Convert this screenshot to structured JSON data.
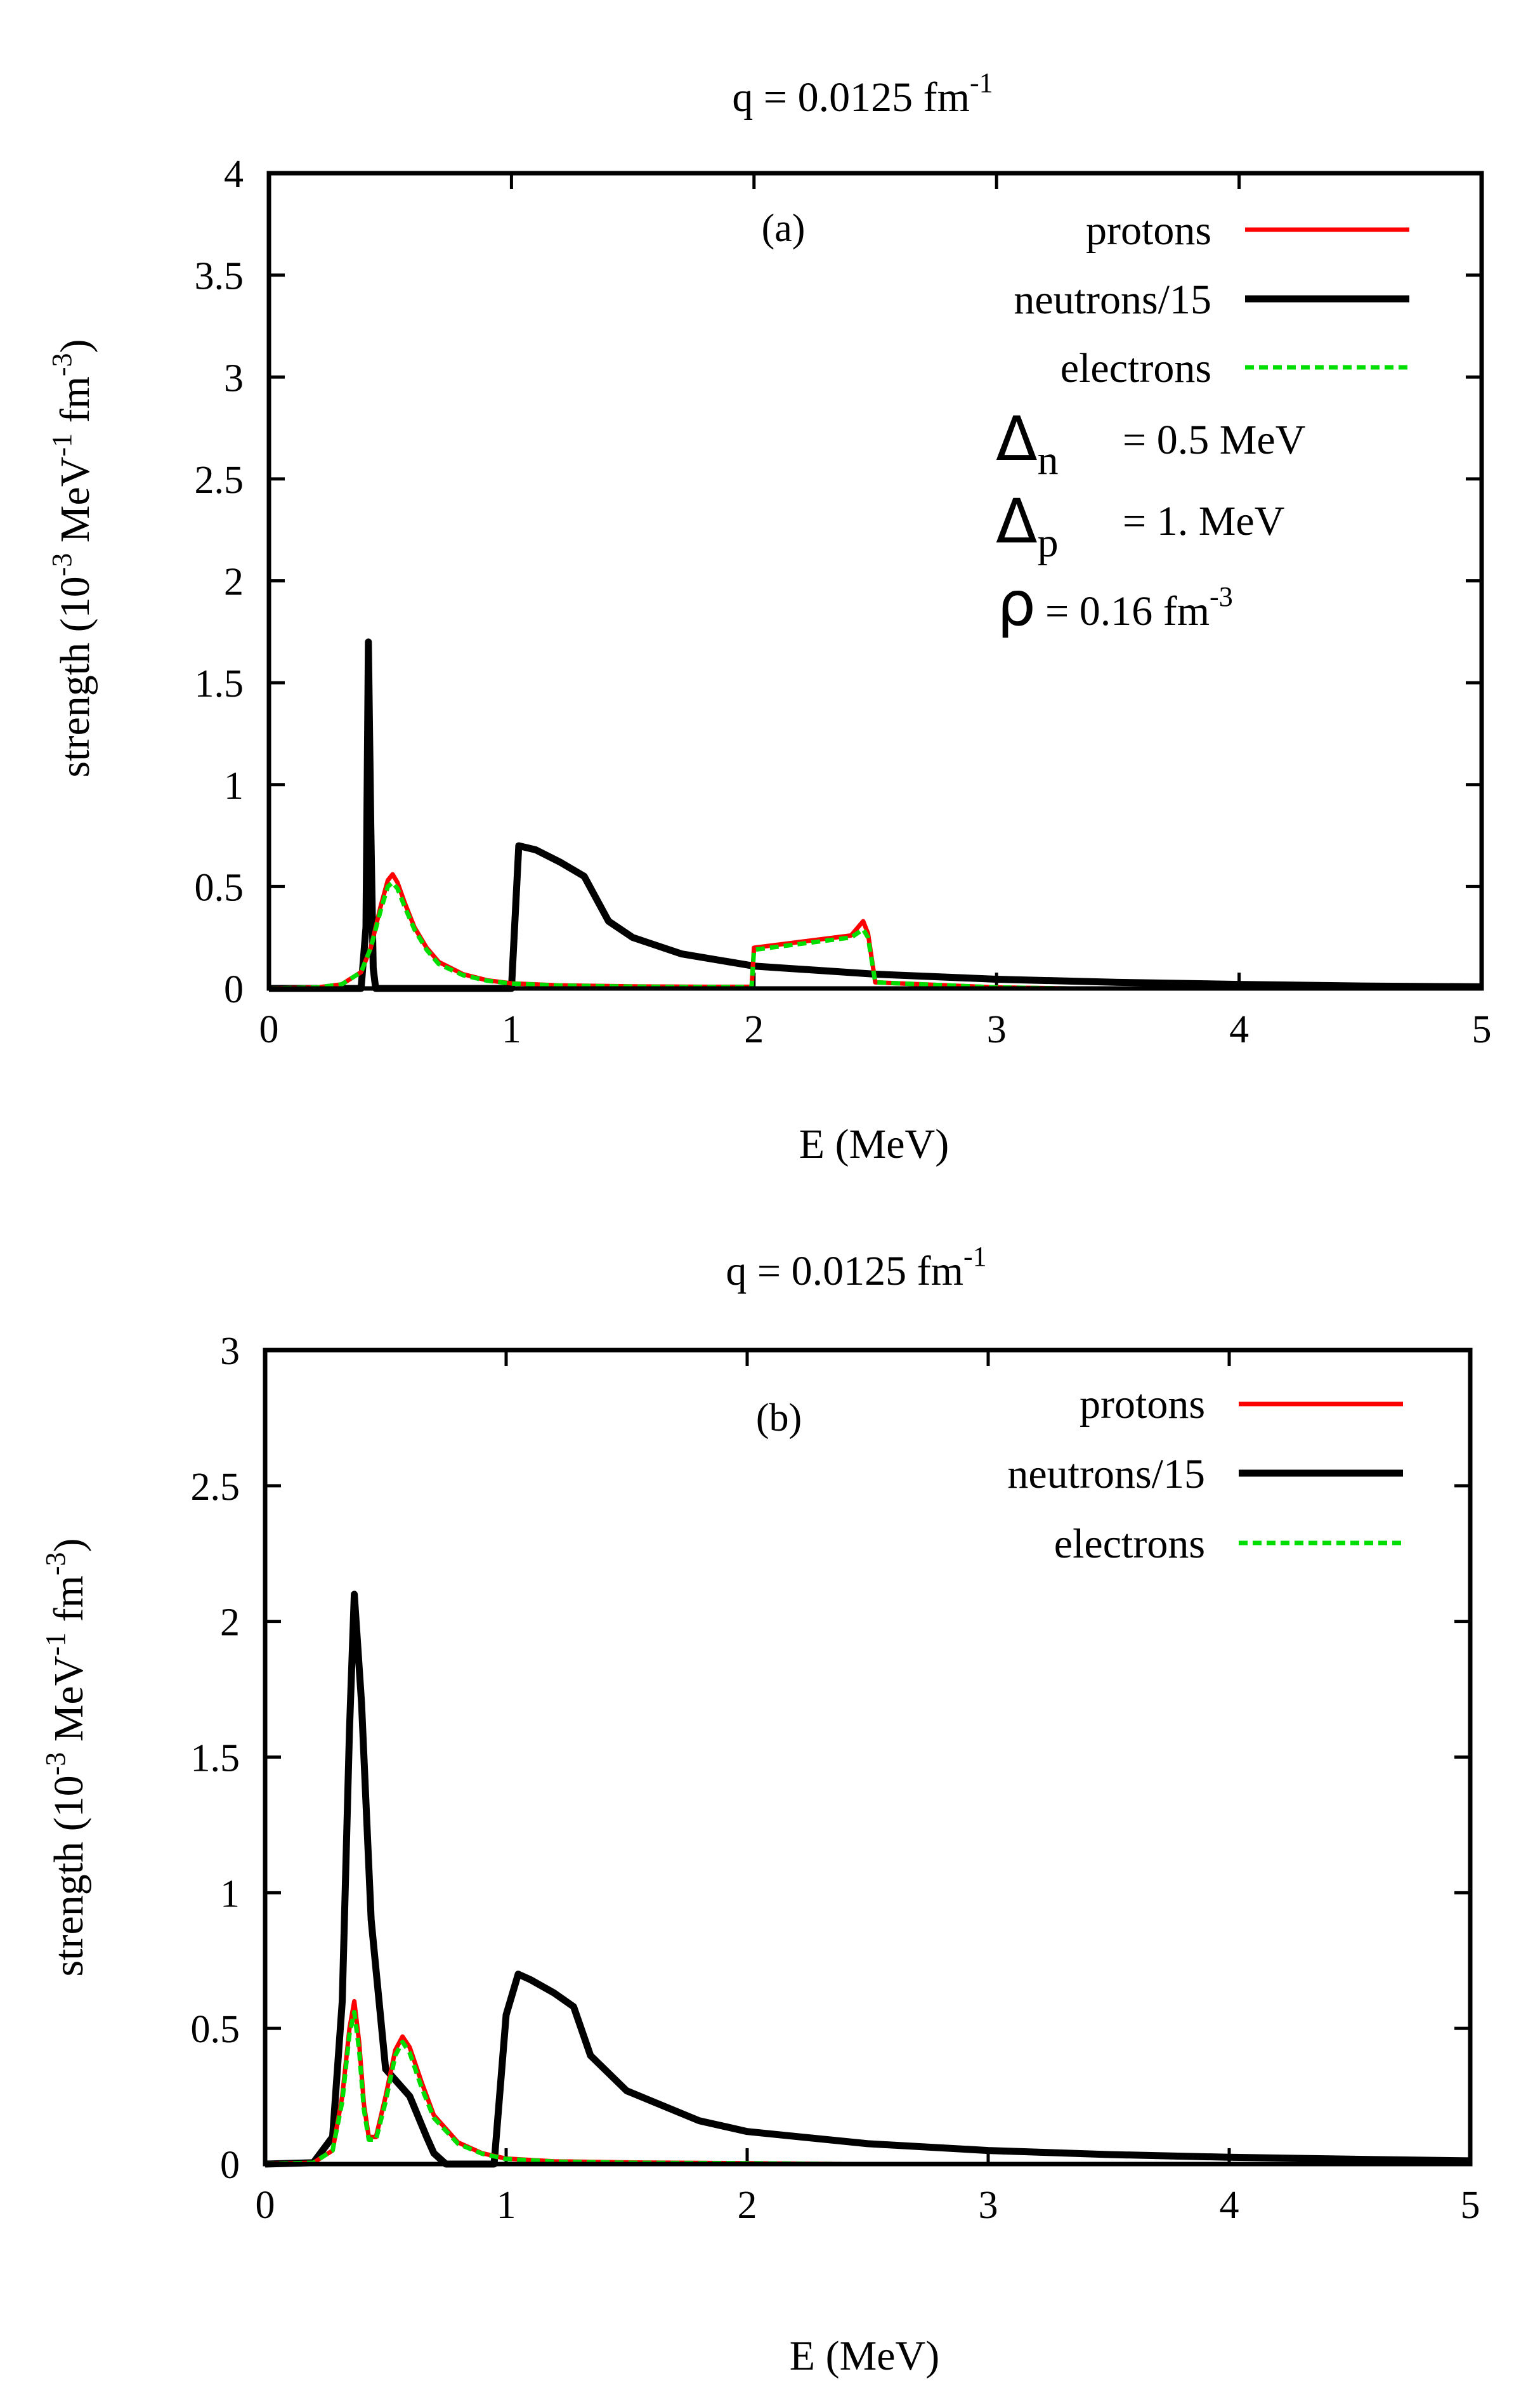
{
  "chart_data": [
    {
      "type": "line",
      "panel_label": "(a)",
      "title": "q = 0.0125 fm",
      "title_sup": "-1",
      "xlabel": "E (MeV)",
      "ylabel": "strength (10",
      "ylabel_sup1": "-3",
      "ylabel_mid": " MeV",
      "ylabel_sup2": "-1",
      "ylabel_mid2": " fm",
      "ylabel_sup3": "-3",
      "ylabel_end": ")",
      "xlim": [
        0,
        5
      ],
      "ylim": [
        0,
        4
      ],
      "xticks": [
        "0",
        "1",
        "2",
        "3",
        "4",
        "5"
      ],
      "yticks": [
        "0",
        "0.5",
        "1",
        "1.5",
        "2",
        "2.5",
        "3",
        "3.5",
        "4"
      ],
      "grid": false,
      "legend_position": "top-right",
      "series": [
        {
          "name": "protons",
          "color": "#ff0000",
          "style": "solid",
          "x": [
            0,
            0.2,
            0.3,
            0.38,
            0.42,
            0.46,
            0.49,
            0.51,
            0.53,
            0.56,
            0.6,
            0.65,
            0.7,
            0.8,
            0.9,
            1.0,
            1.2,
            1.5,
            1.8,
            1.99,
            2.0,
            2.2,
            2.4,
            2.45,
            2.47,
            2.5,
            3.0,
            3.3
          ],
          "y": [
            0,
            0.005,
            0.02,
            0.08,
            0.2,
            0.4,
            0.53,
            0.56,
            0.52,
            0.42,
            0.3,
            0.2,
            0.13,
            0.07,
            0.04,
            0.025,
            0.015,
            0.01,
            0.008,
            0.008,
            0.2,
            0.23,
            0.26,
            0.33,
            0.27,
            0.03,
            0.005,
            0
          ]
        },
        {
          "name": "neutrons/15",
          "color": "#000000",
          "style": "solid",
          "x": [
            0,
            0.38,
            0.4,
            0.41,
            0.42,
            0.43,
            0.44,
            1.0,
            1.03,
            1.1,
            1.2,
            1.3,
            1.4,
            1.5,
            1.7,
            2.0,
            2.5,
            3.0,
            3.5,
            4.0,
            4.5,
            5.0
          ],
          "y": [
            0,
            0,
            0.3,
            1.7,
            0.8,
            0.1,
            0,
            0,
            0.7,
            0.68,
            0.62,
            0.55,
            0.33,
            0.25,
            0.17,
            0.11,
            0.07,
            0.045,
            0.03,
            0.02,
            0.012,
            0.008
          ]
        },
        {
          "name": "electrons",
          "color": "#00dd00",
          "style": "dashed",
          "x": [
            0,
            0.2,
            0.3,
            0.38,
            0.42,
            0.46,
            0.49,
            0.51,
            0.53,
            0.56,
            0.6,
            0.65,
            0.7,
            0.8,
            0.9,
            1.0,
            1.2,
            1.5,
            1.8,
            1.99,
            2.0,
            2.2,
            2.4,
            2.45,
            2.47,
            2.5,
            3.0,
            3.3
          ],
          "y": [
            0,
            0.005,
            0.02,
            0.08,
            0.2,
            0.38,
            0.5,
            0.52,
            0.49,
            0.4,
            0.29,
            0.19,
            0.12,
            0.065,
            0.038,
            0.024,
            0.014,
            0.009,
            0.007,
            0.007,
            0.19,
            0.22,
            0.25,
            0.29,
            0.25,
            0.03,
            0.005,
            0
          ]
        }
      ],
      "annotations": [
        {
          "symbol": "Δ",
          "sub": "n",
          "text": "= 0.5 MeV"
        },
        {
          "symbol": "Δ",
          "sub": "p",
          "text": "= 1. MeV"
        },
        {
          "symbol": "ρ",
          "sub": "",
          "text": "= 0.16 fm",
          "sup": "-3"
        }
      ]
    },
    {
      "type": "line",
      "panel_label": "(b)",
      "title": "q = 0.0125 fm",
      "title_sup": "-1",
      "xlabel": "E (MeV)",
      "ylabel": "strength (10",
      "ylabel_sup1": "-3",
      "ylabel_mid": " MeV",
      "ylabel_sup2": "-1",
      "ylabel_mid2": " fm",
      "ylabel_sup3": "-3",
      "ylabel_end": ")",
      "xlim": [
        0,
        5
      ],
      "ylim": [
        0,
        3
      ],
      "xticks": [
        "0",
        "1",
        "2",
        "3",
        "4",
        "5"
      ],
      "yticks": [
        "0",
        "0.5",
        "1",
        "1.5",
        "2",
        "2.5",
        "3"
      ],
      "grid": false,
      "legend_position": "top-right",
      "series": [
        {
          "name": "protons",
          "color": "#ff0000",
          "style": "solid",
          "x": [
            0,
            0.2,
            0.28,
            0.32,
            0.35,
            0.37,
            0.39,
            0.41,
            0.43,
            0.46,
            0.5,
            0.54,
            0.57,
            0.6,
            0.65,
            0.7,
            0.8,
            0.9,
            1.0,
            1.2,
            1.5,
            2.0,
            2.4
          ],
          "y": [
            0,
            0.005,
            0.05,
            0.25,
            0.5,
            0.6,
            0.45,
            0.22,
            0.1,
            0.1,
            0.25,
            0.42,
            0.47,
            0.43,
            0.3,
            0.18,
            0.08,
            0.04,
            0.02,
            0.01,
            0.006,
            0.003,
            0
          ]
        },
        {
          "name": "neutrons/15",
          "color": "#000000",
          "style": "solid",
          "x": [
            0,
            0.2,
            0.28,
            0.32,
            0.35,
            0.37,
            0.4,
            0.44,
            0.5,
            0.6,
            0.67,
            0.7,
            0.75,
            0.95,
            1.0,
            1.05,
            1.1,
            1.2,
            1.28,
            1.35,
            1.5,
            1.8,
            2.0,
            2.5,
            3.0,
            3.5,
            4.0,
            4.5,
            5.0
          ],
          "y": [
            0,
            0.005,
            0.1,
            0.6,
            1.6,
            2.1,
            1.7,
            0.9,
            0.35,
            0.25,
            0.1,
            0.04,
            0,
            0,
            0.55,
            0.7,
            0.68,
            0.63,
            0.58,
            0.4,
            0.27,
            0.16,
            0.12,
            0.075,
            0.05,
            0.035,
            0.025,
            0.018,
            0.012
          ]
        },
        {
          "name": "electrons",
          "color": "#00dd00",
          "style": "dashed",
          "x": [
            0,
            0.2,
            0.28,
            0.32,
            0.35,
            0.37,
            0.39,
            0.41,
            0.43,
            0.46,
            0.5,
            0.54,
            0.57,
            0.6,
            0.65,
            0.7,
            0.8,
            0.9,
            1.0,
            1.2,
            1.5,
            2.0,
            2.4
          ],
          "y": [
            0,
            0.005,
            0.05,
            0.23,
            0.48,
            0.56,
            0.42,
            0.2,
            0.09,
            0.09,
            0.23,
            0.4,
            0.45,
            0.41,
            0.28,
            0.17,
            0.075,
            0.038,
            0.019,
            0.009,
            0.005,
            0.003,
            0
          ]
        }
      ],
      "annotations": []
    }
  ]
}
